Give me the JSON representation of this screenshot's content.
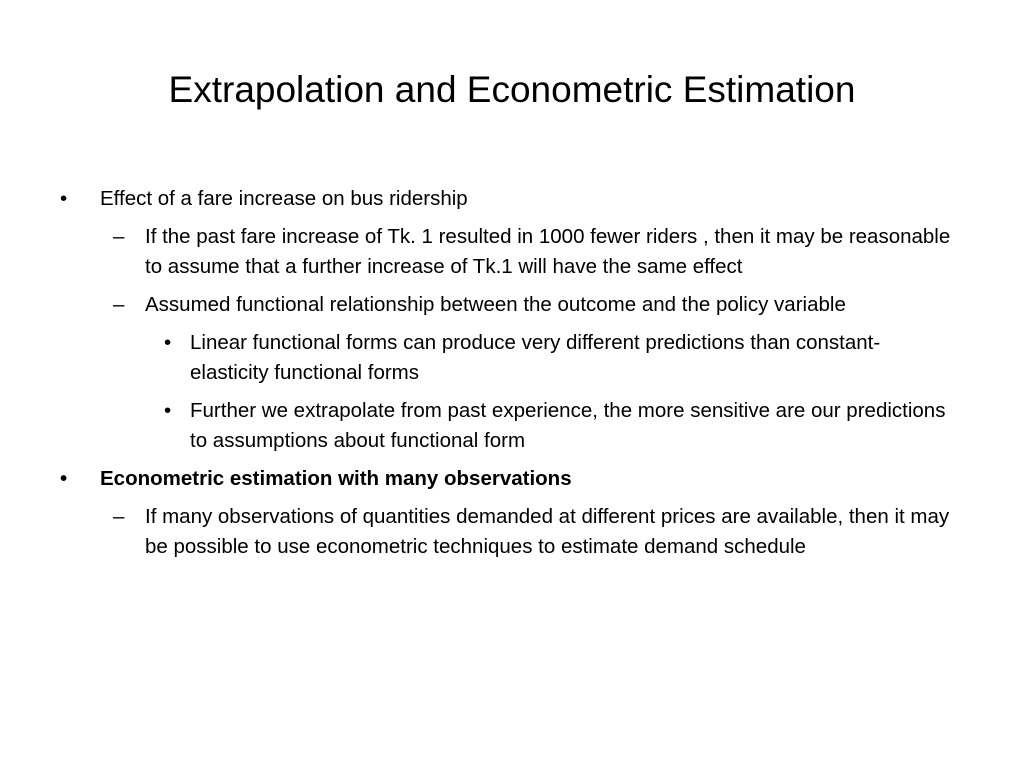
{
  "slide": {
    "title": "Extrapolation and Econometric Estimation",
    "bullets": [
      {
        "marker": "•",
        "text": "Effect of a fare increase on bus ridership",
        "children": [
          {
            "marker": "–",
            "text": "If the past fare increase of Tk. 1 resulted in 1000 fewer riders , then it may be reasonable to assume that a further increase of Tk.1 will have the same effect"
          },
          {
            "marker": "–",
            "text": "Assumed functional relationship between the outcome and the policy variable",
            "children": [
              {
                "marker": "•",
                "text": "Linear functional forms can produce very different predictions than constant-elasticity functional forms"
              },
              {
                "marker": "•",
                "text": "Further we extrapolate from past experience, the more sensitive are our predictions to assumptions about functional form"
              }
            ]
          }
        ]
      },
      {
        "marker": "•",
        "text": "Econometric estimation with many observations",
        "bold": true,
        "children": [
          {
            "marker": "–",
            "text": "If many observations of quantities demanded at different prices are available, then it may be possible to use econometric techniques to estimate demand schedule"
          }
        ]
      }
    ]
  }
}
